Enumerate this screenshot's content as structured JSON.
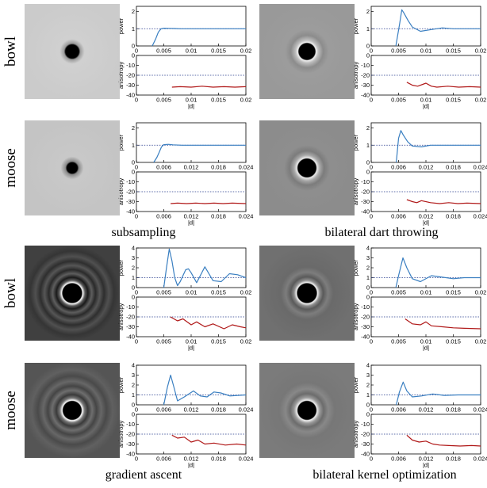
{
  "row_labels": [
    "bowl",
    "moose",
    "bowl",
    "moose"
  ],
  "captions": [
    "subsampling",
    "bilateral dart throwing",
    "gradient ascent",
    "bilateral kernel optimization"
  ],
  "axis_labels": {
    "power": "power",
    "anisotropy": "anisotropy",
    "d": "|d|"
  },
  "chart_data": [
    {
      "type": "line",
      "method": "subsampling",
      "scene": "bowl",
      "power": {
        "xlim": [
          0,
          0.02
        ],
        "ylim": [
          0,
          2.3
        ],
        "reference": 1,
        "xticks": [
          0,
          0.005,
          0.01,
          0.015,
          0.02
        ],
        "yticks": [
          0,
          1,
          2
        ],
        "x": [
          0.0029,
          0.0035,
          0.004,
          0.0045,
          0.005,
          0.006,
          0.007,
          0.008,
          0.01,
          0.012,
          0.015,
          0.018,
          0.02
        ],
        "y": [
          0,
          0.4,
          0.8,
          1.0,
          1.03,
          1.02,
          1.01,
          1.0,
          1.0,
          1.0,
          1.0,
          1.0,
          1.0
        ]
      },
      "anisotropy": {
        "xlim": [
          0,
          0.02
        ],
        "ylim": [
          -40,
          0
        ],
        "reference": -20,
        "xticks": [
          0,
          0.005,
          0.01,
          0.015,
          0.02
        ],
        "yticks": [
          0,
          -10,
          -20,
          -30,
          -40
        ],
        "x": [
          0.0065,
          0.008,
          0.01,
          0.012,
          0.014,
          0.016,
          0.018,
          0.02
        ],
        "y": [
          -32,
          -31.5,
          -32,
          -31,
          -32,
          -31.5,
          -32,
          -31.5
        ]
      }
    },
    {
      "type": "line",
      "method": "bilateral dart throwing",
      "scene": "bowl",
      "power": {
        "xlim": [
          0,
          0.02
        ],
        "ylim": [
          0,
          2.3
        ],
        "reference": 1,
        "xticks": [
          0,
          0.005,
          0.01,
          0.015,
          0.02
        ],
        "yticks": [
          0,
          1,
          2
        ],
        "x": [
          0.0045,
          0.0052,
          0.0056,
          0.006,
          0.0067,
          0.0075,
          0.009,
          0.011,
          0.013,
          0.015,
          0.02
        ],
        "y": [
          0,
          1.3,
          2.1,
          1.9,
          1.5,
          1.1,
          0.85,
          0.95,
          1.05,
          1.0,
          1.0
        ]
      },
      "anisotropy": {
        "xlim": [
          0,
          0.02
        ],
        "ylim": [
          -40,
          0
        ],
        "reference": -20,
        "xticks": [
          0,
          0.005,
          0.01,
          0.015,
          0.02
        ],
        "yticks": [
          0,
          -10,
          -20,
          -30,
          -40
        ],
        "x": [
          0.0065,
          0.0075,
          0.0085,
          0.01,
          0.011,
          0.012,
          0.014,
          0.016,
          0.018,
          0.02
        ],
        "y": [
          -27,
          -30,
          -31,
          -28,
          -31,
          -32,
          -31,
          -32,
          -31.5,
          -32
        ]
      }
    },
    {
      "type": "line",
      "method": "subsampling",
      "scene": "moose",
      "power": {
        "xlim": [
          0,
          0.024
        ],
        "ylim": [
          0,
          2.3
        ],
        "reference": 1,
        "xticks": [
          0,
          0.006,
          0.012,
          0.018,
          0.024
        ],
        "yticks": [
          0,
          1,
          2
        ],
        "x": [
          0.0038,
          0.0045,
          0.005,
          0.0055,
          0.006,
          0.007,
          0.008,
          0.01,
          0.014,
          0.018,
          0.024
        ],
        "y": [
          0,
          0.3,
          0.6,
          0.9,
          1.03,
          1.05,
          1.02,
          1.0,
          1.0,
          1.0,
          1.0
        ]
      },
      "anisotropy": {
        "xlim": [
          0,
          0.024
        ],
        "ylim": [
          -40,
          0
        ],
        "reference": -20,
        "xticks": [
          0,
          0.006,
          0.012,
          0.018,
          0.024
        ],
        "yticks": [
          0,
          -10,
          -20,
          -30,
          -40
        ],
        "x": [
          0.0075,
          0.009,
          0.011,
          0.013,
          0.015,
          0.017,
          0.019,
          0.021,
          0.024
        ],
        "y": [
          -32,
          -31.5,
          -32,
          -31.5,
          -32,
          -31.5,
          -32,
          -31.5,
          -32
        ]
      }
    },
    {
      "type": "line",
      "method": "bilateral dart throwing",
      "scene": "moose",
      "power": {
        "xlim": [
          0,
          0.024
        ],
        "ylim": [
          0,
          2.3
        ],
        "reference": 1,
        "xticks": [
          0,
          0.006,
          0.012,
          0.018,
          0.024
        ],
        "yticks": [
          0,
          1,
          2
        ],
        "x": [
          0.0055,
          0.006,
          0.0065,
          0.007,
          0.008,
          0.009,
          0.011,
          0.013,
          0.015,
          0.018,
          0.024
        ],
        "y": [
          0,
          1.4,
          1.85,
          1.6,
          1.2,
          0.95,
          0.9,
          1.0,
          1.0,
          1.0,
          1.0
        ]
      },
      "anisotropy": {
        "xlim": [
          0,
          0.024
        ],
        "ylim": [
          -40,
          0
        ],
        "reference": -20,
        "xticks": [
          0,
          0.006,
          0.012,
          0.018,
          0.024
        ],
        "yticks": [
          0,
          -10,
          -20,
          -30,
          -40
        ],
        "x": [
          0.0078,
          0.009,
          0.01,
          0.011,
          0.013,
          0.015,
          0.017,
          0.019,
          0.021,
          0.024
        ],
        "y": [
          -28,
          -30,
          -31,
          -29,
          -31,
          -32,
          -31,
          -32,
          -31.5,
          -32
        ]
      }
    },
    {
      "type": "line",
      "method": "gradient ascent",
      "scene": "bowl",
      "power": {
        "xlim": [
          0,
          0.02
        ],
        "ylim": [
          0,
          4
        ],
        "reference": 1,
        "xticks": [
          0,
          0.005,
          0.01,
          0.015,
          0.02
        ],
        "yticks": [
          0,
          1,
          2,
          3,
          4
        ],
        "x": [
          0.005,
          0.0055,
          0.006,
          0.0065,
          0.007,
          0.0075,
          0.008,
          0.009,
          0.0095,
          0.01,
          0.011,
          0.0125,
          0.014,
          0.0155,
          0.017,
          0.0185,
          0.02
        ],
        "y": [
          0,
          2.0,
          3.9,
          2.7,
          1.0,
          0.2,
          0.6,
          1.8,
          1.9,
          1.5,
          0.5,
          2.1,
          0.7,
          0.6,
          1.4,
          1.3,
          1.0
        ]
      },
      "anisotropy": {
        "xlim": [
          0,
          0.02
        ],
        "ylim": [
          -40,
          0
        ],
        "reference": -20,
        "xticks": [
          0,
          0.005,
          0.01,
          0.015,
          0.02
        ],
        "yticks": [
          0,
          -10,
          -20,
          -30,
          -40
        ],
        "x": [
          0.0062,
          0.0075,
          0.0085,
          0.01,
          0.011,
          0.0125,
          0.014,
          0.016,
          0.0175,
          0.019,
          0.02
        ],
        "y": [
          -20,
          -24,
          -22,
          -28,
          -25,
          -30,
          -27,
          -32,
          -28,
          -30,
          -31
        ]
      }
    },
    {
      "type": "line",
      "method": "bilateral kernel optimization",
      "scene": "bowl",
      "power": {
        "xlim": [
          0,
          0.02
        ],
        "ylim": [
          0,
          4
        ],
        "reference": 1,
        "xticks": [
          0,
          0.005,
          0.01,
          0.015,
          0.02
        ],
        "yticks": [
          0,
          1,
          2,
          3,
          4
        ],
        "x": [
          0.0045,
          0.005,
          0.0058,
          0.0065,
          0.0075,
          0.009,
          0.011,
          0.013,
          0.015,
          0.017,
          0.02
        ],
        "y": [
          0,
          1.2,
          3.0,
          2.0,
          0.9,
          0.6,
          1.2,
          1.05,
          0.9,
          1.0,
          1.0
        ]
      },
      "anisotropy": {
        "xlim": [
          0,
          0.02
        ],
        "ylim": [
          -40,
          0
        ],
        "reference": -20,
        "xticks": [
          0,
          0.005,
          0.01,
          0.015,
          0.02
        ],
        "yticks": [
          0,
          -10,
          -20,
          -30,
          -40
        ],
        "x": [
          0.0062,
          0.0075,
          0.009,
          0.01,
          0.011,
          0.013,
          0.015,
          0.017,
          0.02
        ],
        "y": [
          -22,
          -27,
          -28,
          -25,
          -29,
          -30,
          -31,
          -31.5,
          -32
        ]
      }
    },
    {
      "type": "line",
      "method": "gradient ascent",
      "scene": "moose",
      "power": {
        "xlim": [
          0,
          0.024
        ],
        "ylim": [
          0,
          4
        ],
        "reference": 1,
        "xticks": [
          0,
          0.006,
          0.012,
          0.018,
          0.024
        ],
        "yticks": [
          0,
          1,
          2,
          3,
          4
        ],
        "x": [
          0.006,
          0.0068,
          0.0075,
          0.0082,
          0.009,
          0.0105,
          0.0125,
          0.014,
          0.0155,
          0.017,
          0.0185,
          0.0205,
          0.024
        ],
        "y": [
          0,
          1.8,
          3.0,
          1.8,
          0.4,
          0.8,
          1.4,
          0.9,
          0.8,
          1.3,
          1.2,
          0.9,
          1.0
        ]
      },
      "anisotropy": {
        "xlim": [
          0,
          0.024
        ],
        "ylim": [
          -40,
          0
        ],
        "reference": -20,
        "xticks": [
          0,
          0.006,
          0.012,
          0.018,
          0.024
        ],
        "yticks": [
          0,
          -10,
          -20,
          -30,
          -40
        ],
        "x": [
          0.0078,
          0.009,
          0.0105,
          0.012,
          0.0135,
          0.015,
          0.017,
          0.0195,
          0.022,
          0.024
        ],
        "y": [
          -21,
          -24,
          -23,
          -28,
          -26,
          -30,
          -29,
          -31,
          -30,
          -31
        ]
      }
    },
    {
      "type": "line",
      "method": "bilateral kernel optimization",
      "scene": "moose",
      "power": {
        "xlim": [
          0,
          0.024
        ],
        "ylim": [
          0,
          4
        ],
        "reference": 1,
        "xticks": [
          0,
          0.006,
          0.012,
          0.018,
          0.024
        ],
        "yticks": [
          0,
          1,
          2,
          3,
          4
        ],
        "x": [
          0.0055,
          0.0062,
          0.007,
          0.0078,
          0.009,
          0.011,
          0.0135,
          0.016,
          0.019,
          0.024
        ],
        "y": [
          0,
          1.3,
          2.3,
          1.4,
          0.8,
          0.9,
          1.1,
          0.95,
          1.0,
          1.0
        ]
      },
      "anisotropy": {
        "xlim": [
          0,
          0.024
        ],
        "ylim": [
          -40,
          0
        ],
        "reference": -20,
        "xticks": [
          0,
          0.006,
          0.012,
          0.018,
          0.024
        ],
        "yticks": [
          0,
          -10,
          -20,
          -30,
          -40
        ],
        "x": [
          0.0078,
          0.009,
          0.0105,
          0.012,
          0.0135,
          0.015,
          0.017,
          0.0195,
          0.022,
          0.024
        ],
        "y": [
          -21,
          -26,
          -28,
          -27,
          -30,
          -31,
          -31.5,
          -32,
          -31.5,
          -32
        ]
      }
    }
  ],
  "colors": {
    "power_line": "#3a7fc1",
    "anisotropy_line": "#b01818",
    "reference_line": "#2a3f8f"
  }
}
